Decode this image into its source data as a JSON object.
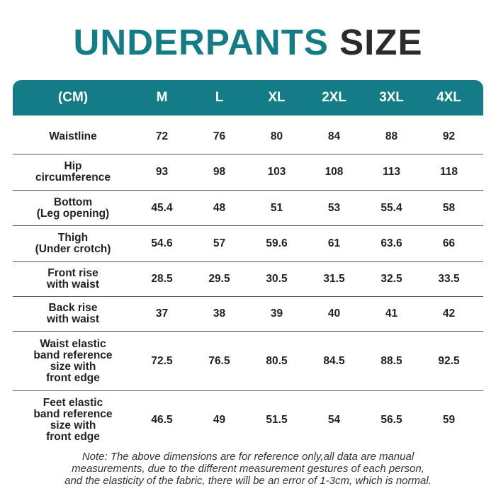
{
  "title": {
    "part1": "UNDERPANTS",
    "part2": "SIZE"
  },
  "table": {
    "header": [
      "(CM)",
      "M",
      "L",
      "XL",
      "2XL",
      "3XL",
      "4XL"
    ],
    "rows": [
      [
        "Waistline",
        72,
        76,
        80,
        84,
        88,
        92
      ],
      [
        "Hip\ncircumference",
        93,
        98,
        103,
        108,
        113,
        118
      ],
      [
        "Bottom\n(Leg opening)",
        45.4,
        48,
        51,
        53,
        55.4,
        58
      ],
      [
        "Thigh\n(Under crotch)",
        54.6,
        57,
        59.6,
        61,
        63.6,
        66
      ],
      [
        "Front rise\nwith waist",
        28.5,
        29.5,
        30.5,
        31.5,
        32.5,
        33.5
      ],
      [
        "Back rise\nwith waist",
        37,
        38,
        39,
        40,
        41,
        42
      ],
      [
        "Waist elastic\nband reference\nsize with\nfront edge",
        72.5,
        76.5,
        80.5,
        84.5,
        88.5,
        92.5
      ],
      [
        "Feet elastic\nband reference\nsize with\nfront edge",
        46.5,
        49,
        51.5,
        54,
        56.5,
        59
      ]
    ]
  },
  "note": "Note: The above dimensions are for reference only,all data are manual\nmeasurements, due to the different measurement gestures of each person,\nand the elasticity of the fabric, there will be an error of 1-3cm, which is normal."
}
